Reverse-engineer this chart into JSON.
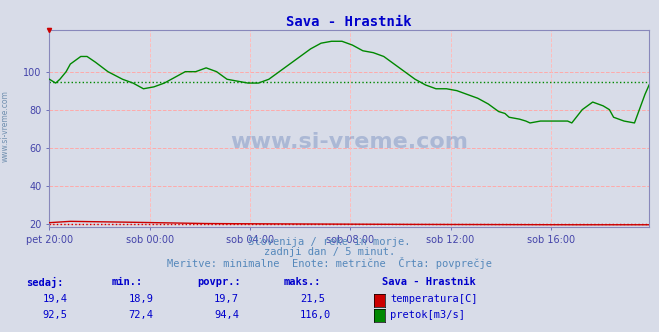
{
  "title": "Sava - Hrastnik",
  "title_color": "#0000cc",
  "bg_color": "#d8dce8",
  "plot_bg_color": "#d8dce8",
  "xlabel_ticks": [
    "pet 20:00",
    "sob 00:00",
    "sob 04:00",
    "sob 08:00",
    "sob 12:00",
    "sob 16:00"
  ],
  "ylabel_ticks": [
    20,
    40,
    60,
    80,
    100
  ],
  "ylim": [
    18,
    122
  ],
  "xlim": [
    0,
    287
  ],
  "tick_color": "#4444aa",
  "grid_color_h": "#ffaaaa",
  "grid_color_v": "#ffbbbb",
  "temp_color": "#cc0000",
  "flow_color": "#008800",
  "avg_temp": 19.7,
  "avg_flow": 94.4,
  "subtitle1": "Slovenija / reke in morje.",
  "subtitle2": "zadnji dan / 5 minut.",
  "subtitle3": "Meritve: minimalne  Enote: metrične  Črta: povprečje",
  "subtitle_color": "#5588bb",
  "footer_color": "#0000cc",
  "watermark": "www.si-vreme.com",
  "watermark_color": "#4466aa",
  "legend_title": "Sava - Hrastnik",
  "legend_entries": [
    "temperatura[C]",
    "pretok[m3/s]"
  ],
  "legend_colors": [
    "#cc0000",
    "#008800"
  ],
  "stats_headers": [
    "sedaj:",
    "min.:",
    "povpr.:",
    "maks.:"
  ],
  "stats_temp": [
    19.4,
    18.9,
    19.7,
    21.5
  ],
  "stats_flow": [
    92.5,
    72.4,
    94.4,
    116.0
  ],
  "flow_points_x": [
    0,
    3,
    5,
    8,
    10,
    15,
    18,
    22,
    28,
    35,
    40,
    45,
    50,
    55,
    60,
    65,
    70,
    75,
    80,
    85,
    90,
    95,
    100,
    105,
    110,
    115,
    120,
    125,
    130,
    135,
    140,
    145,
    150,
    155,
    160,
    165,
    170,
    175,
    180,
    185,
    190,
    195,
    200,
    205,
    210,
    215,
    218,
    220,
    225,
    228,
    230,
    235,
    240,
    245,
    248,
    250,
    255,
    260,
    265,
    268,
    270,
    275,
    280,
    283,
    285,
    287
  ],
  "flow_points_y": [
    96,
    94,
    96,
    100,
    104,
    108,
    108,
    105,
    100,
    96,
    94,
    91,
    92,
    94,
    97,
    100,
    100,
    102,
    100,
    96,
    95,
    94,
    94,
    96,
    100,
    104,
    108,
    112,
    115,
    116,
    116,
    114,
    111,
    110,
    108,
    104,
    100,
    96,
    93,
    91,
    91,
    90,
    88,
    86,
    83,
    79,
    78,
    76,
    75,
    74,
    73,
    74,
    74,
    74,
    74,
    73,
    80,
    84,
    82,
    80,
    76,
    74,
    73,
    82,
    88,
    93
  ],
  "temp_points_x": [
    0,
    10,
    20,
    30,
    50,
    60,
    70,
    80,
    100,
    110,
    120,
    140,
    160,
    180,
    200,
    220,
    240,
    260,
    280,
    287
  ],
  "temp_points_y": [
    20.5,
    21.2,
    21.0,
    20.9,
    20.5,
    20.3,
    20.1,
    20.0,
    19.9,
    19.8,
    19.8,
    19.7,
    19.6,
    19.6,
    19.5,
    19.5,
    19.4,
    19.4,
    19.4,
    19.4
  ]
}
